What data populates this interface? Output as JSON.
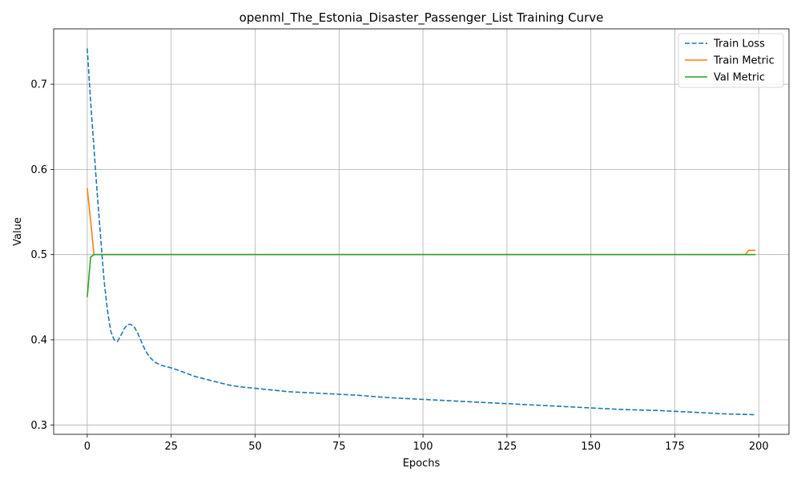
{
  "chart_data": {
    "type": "line",
    "title": "openml_The_Estonia_Disaster_Passenger_List Training Curve",
    "xlabel": "Epochs",
    "ylabel": "Value",
    "xlim": [
      -10,
      209
    ],
    "ylim": [
      0.289,
      0.765
    ],
    "xticks": [
      0,
      25,
      50,
      75,
      100,
      125,
      150,
      175,
      200
    ],
    "yticks": [
      0.3,
      0.4,
      0.5,
      0.6,
      0.7
    ],
    "ytick_labels": [
      "0.3",
      "0.4",
      "0.5",
      "0.6",
      "0.7"
    ],
    "grid": true,
    "legend_position": "top-right",
    "series": [
      {
        "name": "Train Loss",
        "color": "#1f77b4",
        "style": "dashed",
        "x": [
          0,
          1,
          2,
          3,
          4,
          5,
          6,
          7,
          8,
          9,
          10,
          11,
          12,
          13,
          14,
          15,
          16,
          17,
          18,
          19,
          20,
          22,
          25,
          28,
          30,
          32,
          35,
          38,
          40,
          42,
          45,
          50,
          55,
          60,
          70,
          80,
          90,
          100,
          110,
          120,
          130,
          140,
          150,
          160,
          170,
          180,
          190,
          199
        ],
        "y": [
          0.742,
          0.68,
          0.625,
          0.57,
          0.52,
          0.47,
          0.435,
          0.41,
          0.4,
          0.398,
          0.405,
          0.413,
          0.418,
          0.418,
          0.415,
          0.408,
          0.399,
          0.39,
          0.383,
          0.378,
          0.374,
          0.37,
          0.367,
          0.363,
          0.36,
          0.357,
          0.354,
          0.351,
          0.349,
          0.347,
          0.345,
          0.343,
          0.341,
          0.339,
          0.337,
          0.335,
          0.332,
          0.33,
          0.328,
          0.326,
          0.324,
          0.322,
          0.32,
          0.318,
          0.317,
          0.315,
          0.313,
          0.312
        ]
      },
      {
        "name": "Train Metric",
        "color": "#ff7f0e",
        "style": "solid",
        "x": [
          0,
          1,
          2,
          3,
          100,
          196,
          197,
          198,
          199
        ],
        "y": [
          0.578,
          0.54,
          0.5,
          0.5,
          0.5,
          0.5,
          0.505,
          0.505,
          0.505
        ]
      },
      {
        "name": "Val Metric",
        "color": "#2ca02c",
        "style": "solid",
        "x": [
          0,
          1,
          2,
          3,
          100,
          199
        ],
        "y": [
          0.45,
          0.497,
          0.5,
          0.5,
          0.5,
          0.5
        ]
      }
    ]
  }
}
